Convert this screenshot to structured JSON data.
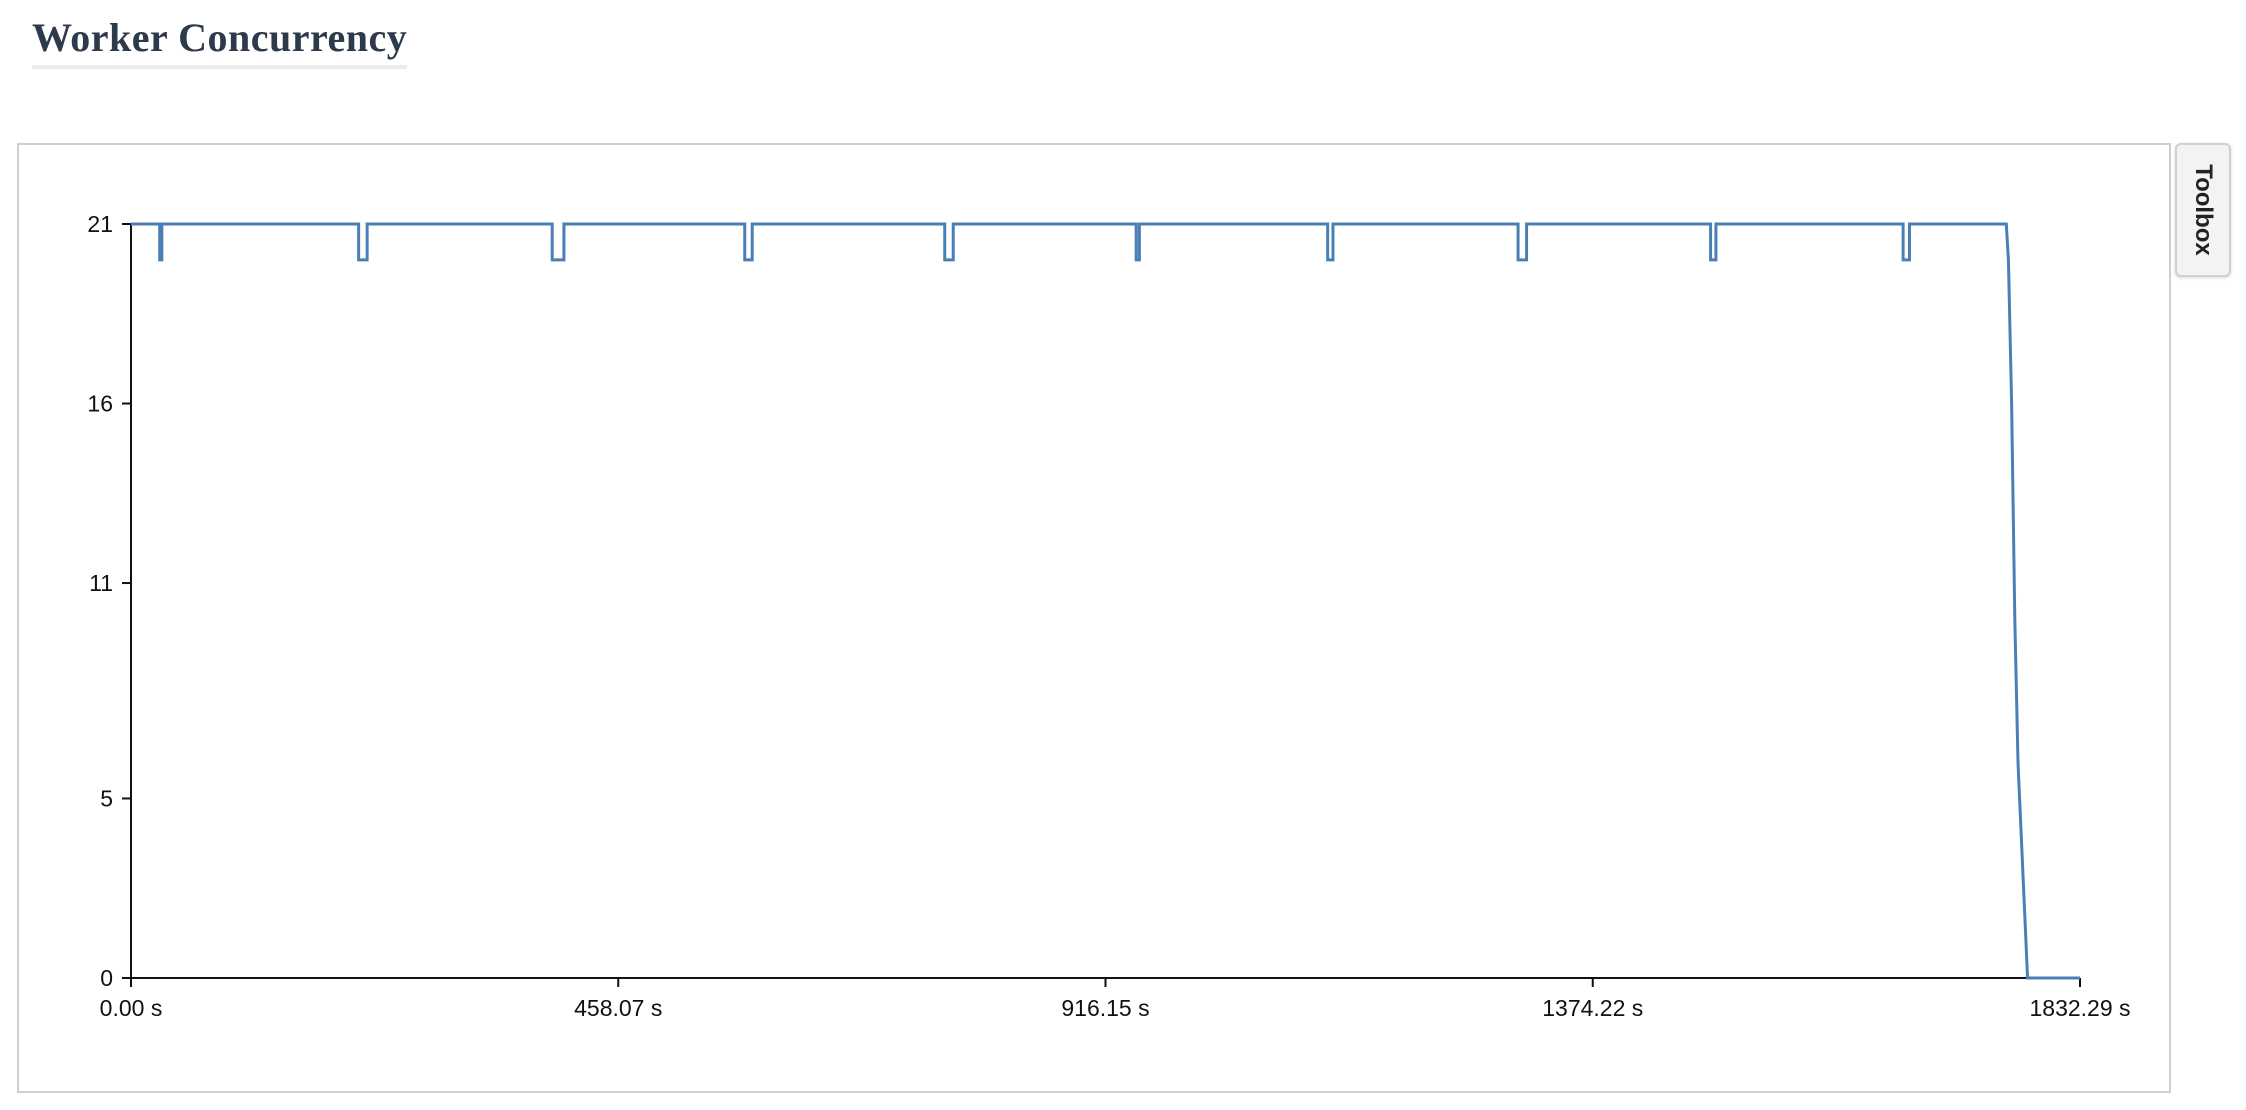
{
  "header": {
    "title": "Worker Concurrency"
  },
  "toolbox": {
    "label": "Toolbox"
  },
  "chart_data": {
    "type": "line",
    "title": "",
    "xlabel": "",
    "ylabel": "",
    "x_unit": "s",
    "xlim": [
      0,
      1832.29
    ],
    "ylim": [
      0,
      21
    ],
    "x_ticks": [
      0.0,
      458.07,
      916.15,
      1374.22,
      1832.29
    ],
    "x_tick_labels": [
      "0.00 s",
      "458.07 s",
      "916.15 s",
      "1374.22 s",
      "1832.29 s"
    ],
    "y_ticks": [
      0,
      5,
      11,
      16,
      21
    ],
    "y_tick_labels": [
      "0",
      "5",
      "11",
      "16",
      "21"
    ],
    "step": true,
    "grid": false,
    "series": [
      {
        "color": "#4a7fb5",
        "x": [
          0,
          27,
          27,
          29,
          29,
          214,
          214,
          222,
          222,
          396,
          396,
          407,
          407,
          577,
          577,
          584,
          584,
          765,
          765,
          773,
          773,
          945,
          945,
          948,
          948,
          1125,
          1125,
          1130,
          1130,
          1304,
          1304,
          1312,
          1312,
          1485,
          1485,
          1490,
          1490,
          1666,
          1666,
          1672,
          1672,
          1763,
          1765,
          1768,
          1771,
          1774,
          1783,
          1832.29
        ],
        "y": [
          21,
          21,
          20,
          20,
          21,
          21,
          20,
          20,
          21,
          21,
          20,
          20,
          21,
          21,
          20,
          20,
          21,
          21,
          20,
          20,
          21,
          21,
          20,
          20,
          21,
          21,
          20,
          20,
          21,
          21,
          20,
          20,
          21,
          21,
          20,
          20,
          21,
          21,
          20,
          20,
          21,
          21,
          20,
          16,
          10,
          6,
          0,
          0
        ]
      }
    ]
  }
}
